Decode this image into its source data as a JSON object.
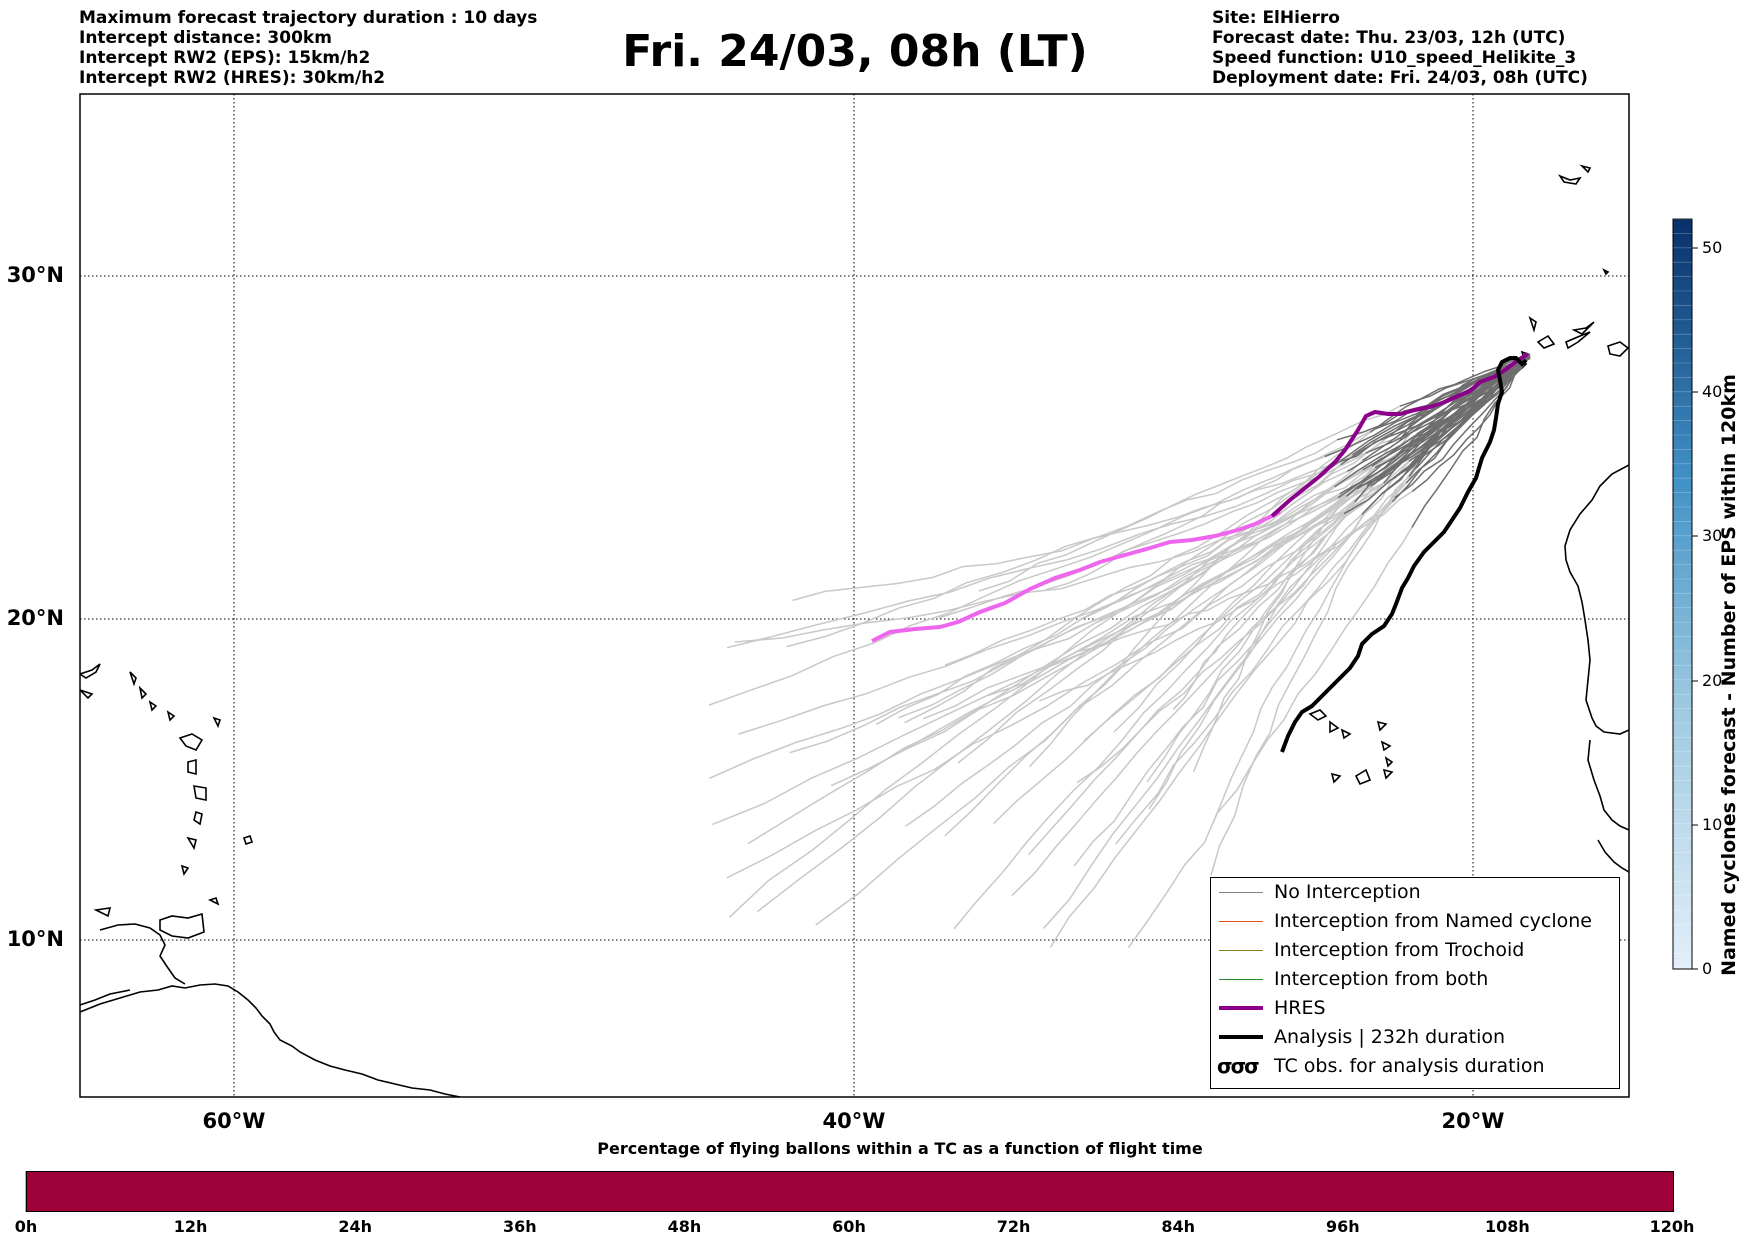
{
  "header_left": {
    "line1": "Maximum forecast trajectory duration : 10 days",
    "line2": "Intercept distance: 300km",
    "line3": "Intercept RW2 (EPS):  15km/h2",
    "line4": "Intercept RW2 (HRES): 30km/h2"
  },
  "header_right": {
    "line1": "Site: ElHierro",
    "line2": "Forecast date: Thu. 23/03, 12h (UTC)",
    "line3": "Speed function: U10_speed_Helikite_3",
    "line4": "Deployment date: Fri. 24/03, 08h (UTC)"
  },
  "title": "Fri. 24/03, 08h (LT)",
  "map": {
    "lat_labels": [
      "30°N",
      "20°N",
      "10°N"
    ],
    "lon_labels": [
      "60°W",
      "40°W",
      "20°W"
    ],
    "extent": {
      "lon_min": -65,
      "lon_max": -15,
      "lat_min": 5.3,
      "lat_max": 35.3
    },
    "launch_site": {
      "lon": -18.0,
      "lat": 27.7
    },
    "colors": {
      "no_interception": "#6e6e6e",
      "no_interception_light": "#c8c8c8",
      "hres": "#8b008b",
      "hres_light": "#ee66ee",
      "analysis": "#000000"
    }
  },
  "legend": {
    "items": [
      {
        "label": "No Interception",
        "color": "#808080"
      },
      {
        "label": "Interception from Named cyclone",
        "color": "#e8501c"
      },
      {
        "label": "Interception from Trochoid",
        "color": "#808020"
      },
      {
        "label": "Interception from both",
        "color": "#2a8a2a"
      },
      {
        "label": "HRES",
        "color": "#8b008b"
      },
      {
        "label": "Analysis | 232h duration",
        "color": "#000000"
      },
      {
        "label": "TC obs. for analysis duration",
        "color": "#000000",
        "icon": "cyclone-symbol-icon"
      }
    ],
    "tc_icon_glyph": "σσσ"
  },
  "colorbar": {
    "label": "Named cyclones forecast - Number of EPS within 120km",
    "ticks": [
      "0",
      "10",
      "20",
      "30",
      "40",
      "50"
    ],
    "min": 0,
    "max": 52,
    "color_low": "#e3eef9",
    "color_high": "#08306b"
  },
  "time_bar": {
    "caption": "Percentage of flying ballons within a TC as a function of flight time",
    "ticks": [
      "0h",
      "12h",
      "24h",
      "36h",
      "48h",
      "60h",
      "72h",
      "84h",
      "96h",
      "108h",
      "120h"
    ],
    "color": "#9e003a"
  }
}
